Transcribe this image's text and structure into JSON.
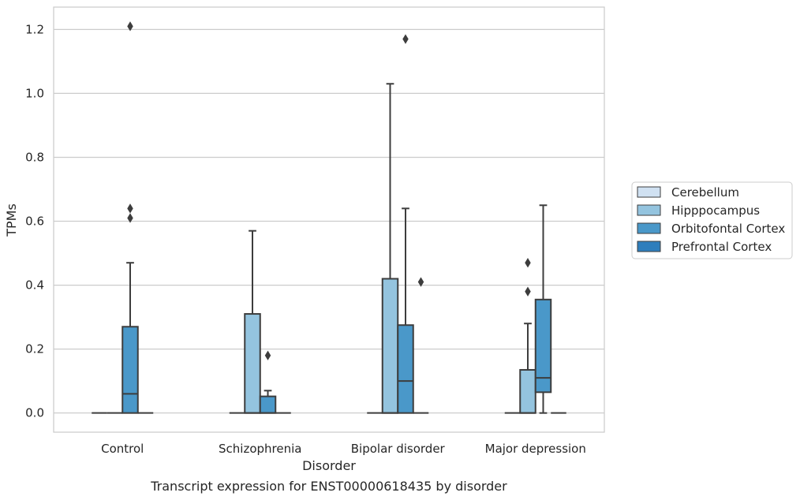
{
  "chart_data": {
    "type": "box",
    "caption": "Transcript expression for ENST00000618435 by disorder",
    "xlabel": "Disorder",
    "ylabel": "TPMs",
    "ylim": [
      -0.06,
      1.27
    ],
    "yticks": [
      0.0,
      0.2,
      0.4,
      0.6,
      0.8,
      1.0,
      1.2
    ],
    "ytick_labels": [
      "0.0",
      "0.2",
      "0.4",
      "0.6",
      "0.8",
      "1.0",
      "1.2"
    ],
    "grid": true,
    "legend_position": "right",
    "categories": [
      "Control",
      "Schizophrenia",
      "Bipolar disorder",
      "Major depression"
    ],
    "series": [
      {
        "name": "Cerebellum",
        "color": "#d0e1f2",
        "boxes": [
          {
            "q1": 0,
            "median": 0,
            "q3": 0,
            "whislo": 0,
            "whishi": 0,
            "fliers": []
          },
          {
            "q1": 0,
            "median": 0,
            "q3": 0,
            "whislo": 0,
            "whishi": 0,
            "fliers": []
          },
          {
            "q1": 0,
            "median": 0,
            "q3": 0,
            "whislo": 0,
            "whishi": 0,
            "fliers": []
          },
          {
            "q1": 0,
            "median": 0,
            "q3": 0,
            "whislo": 0,
            "whishi": 0,
            "fliers": []
          }
        ]
      },
      {
        "name": "Hipppocampus",
        "color": "#94c4df",
        "boxes": [
          {
            "q1": 0,
            "median": 0,
            "q3": 0,
            "whislo": 0,
            "whishi": 0,
            "fliers": []
          },
          {
            "q1": 0,
            "median": 0,
            "q3": 0.31,
            "whislo": 0,
            "whishi": 0.57,
            "fliers": []
          },
          {
            "q1": 0,
            "median": 0,
            "q3": 0.42,
            "whislo": 0,
            "whishi": 1.03,
            "fliers": []
          },
          {
            "q1": 0,
            "median": 0,
            "q3": 0.135,
            "whislo": 0,
            "whishi": 0.28,
            "fliers": [
              0.38,
              0.47
            ]
          }
        ]
      },
      {
        "name": "Orbitofontal Cortex",
        "color": "#4a98c9",
        "boxes": [
          {
            "q1": 0,
            "median": 0.06,
            "q3": 0.27,
            "whislo": 0,
            "whishi": 0.47,
            "fliers": [
              0.61,
              0.64,
              1.21
            ]
          },
          {
            "q1": 0,
            "median": 0,
            "q3": 0.052,
            "whislo": 0,
            "whishi": 0.07,
            "fliers": [
              0.18
            ]
          },
          {
            "q1": 0,
            "median": 0.1,
            "q3": 0.275,
            "whislo": 0,
            "whishi": 0.64,
            "fliers": [
              1.17
            ]
          },
          {
            "q1": 0.065,
            "median": 0.11,
            "q3": 0.355,
            "whislo": 0,
            "whishi": 0.65,
            "fliers": []
          }
        ]
      },
      {
        "name": "Prefrontal Cortex",
        "color": "#2e7ebc",
        "boxes": [
          {
            "q1": 0,
            "median": 0,
            "q3": 0,
            "whislo": 0,
            "whishi": 0,
            "fliers": []
          },
          {
            "q1": 0,
            "median": 0,
            "q3": 0,
            "whislo": 0,
            "whishi": 0,
            "fliers": []
          },
          {
            "q1": 0,
            "median": 0,
            "q3": 0,
            "whislo": 0,
            "whishi": 0,
            "fliers": [
              0.41
            ]
          },
          {
            "q1": 0,
            "median": 0,
            "q3": 0,
            "whislo": 0,
            "whishi": 0,
            "fliers": []
          }
        ]
      }
    ]
  }
}
